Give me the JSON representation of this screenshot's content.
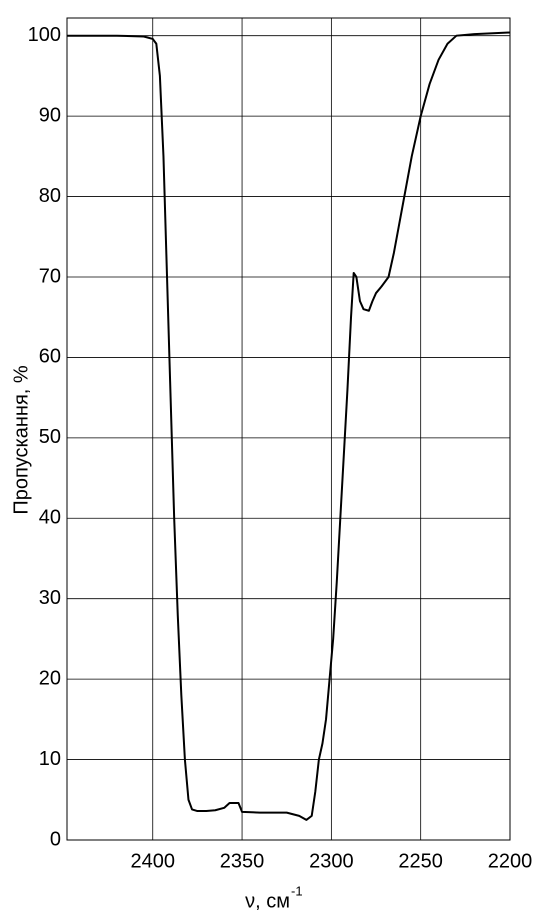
{
  "chart_data": {
    "type": "line",
    "y_label": "Пропускання, %",
    "x_label": "ν, см",
    "x_label_superscript": "-1",
    "x": [
      2448,
      2420,
      2405,
      2400,
      2398,
      2396,
      2394,
      2392,
      2390,
      2388,
      2386,
      2384,
      2382,
      2380,
      2378,
      2375,
      2370,
      2365,
      2360,
      2357,
      2352,
      2350,
      2340,
      2330,
      2325,
      2318,
      2314,
      2311,
      2309,
      2307,
      2305,
      2303,
      2301,
      2299,
      2297,
      2295,
      2293,
      2291,
      2289,
      2287.5,
      2286,
      2284,
      2282,
      2279,
      2277,
      2275,
      2272,
      2268,
      2265,
      2260,
      2255,
      2250,
      2245,
      2240,
      2235,
      2230,
      2220,
      2200
    ],
    "series": [
      {
        "color": "#000000",
        "values": [
          100,
          100,
          99.9,
          99.6,
          99,
          95,
          85,
          70,
          55,
          40,
          28,
          18,
          10,
          5,
          3.8,
          3.6,
          3.6,
          3.7,
          4.0,
          4.6,
          4.6,
          3.5,
          3.4,
          3.4,
          3.4,
          3.0,
          2.5,
          3,
          6,
          10,
          12,
          15,
          20,
          25,
          32,
          40,
          48,
          56,
          65,
          70.5,
          70,
          67,
          66,
          65.8,
          67,
          68,
          68.8,
          70,
          73,
          79,
          85,
          90,
          94,
          97,
          99,
          100,
          100.2,
          100.4
        ]
      }
    ],
    "xlim": [
      2448,
      2200
    ],
    "ylim": [
      0,
      102.2
    ],
    "xticks": [
      2400,
      2350,
      2300,
      2250,
      2200
    ],
    "yticks": [
      0,
      10,
      20,
      30,
      40,
      50,
      60,
      70,
      80,
      90,
      100
    ],
    "grid": true
  }
}
